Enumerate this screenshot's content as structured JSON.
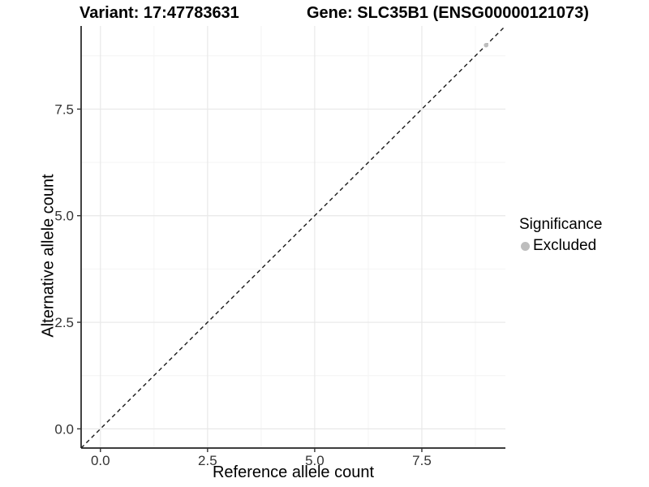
{
  "chart_data": {
    "type": "scatter",
    "title_left": "Variant: 17:47783631",
    "title_right": "Gene: SLC35B1 (ENSG00000121073)",
    "xlabel": "Reference allele count",
    "ylabel": "Alternative allele count",
    "xlim": [
      -0.45,
      9.45
    ],
    "ylim": [
      -0.45,
      9.45
    ],
    "xticks": {
      "values": [
        0,
        2.5,
        5,
        7.5
      ],
      "labels": [
        "0.0",
        "2.5",
        "5.0",
        "7.5"
      ]
    },
    "yticks": {
      "values": [
        0,
        2.5,
        5,
        7.5
      ],
      "labels": [
        "0.0",
        "2.5",
        "5.0",
        "7.5"
      ]
    },
    "minor_x": [
      1.25,
      3.75,
      6.25,
      8.75
    ],
    "minor_y": [
      1.25,
      3.75,
      6.25,
      8.75
    ],
    "grid": "major+minor",
    "identity_line": {
      "slope": 1,
      "intercept": 0,
      "linetype": "dashed",
      "color": "#1a1a1a"
    },
    "series": [
      {
        "name": "Excluded",
        "color": "#bdbdbd",
        "points": [
          [
            9,
            9
          ]
        ]
      }
    ],
    "legend": {
      "title": "Significance",
      "position": "right",
      "items": [
        {
          "label": "Excluded",
          "color": "#bdbdbd"
        }
      ]
    }
  },
  "colors": {
    "background": "#ffffff",
    "axis_line": "#222222",
    "tick_mark": "#333333",
    "tick_text": "#333333",
    "grid_major": "#e8e8e8",
    "grid_minor": "#f4f4f4"
  }
}
